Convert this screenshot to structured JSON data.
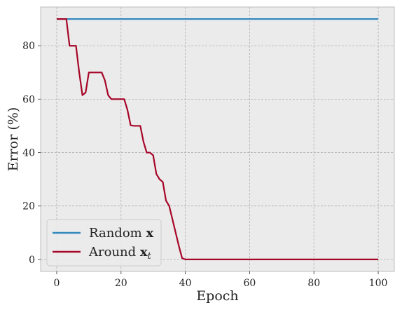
{
  "chart_data": {
    "type": "line",
    "xlabel": "Epoch",
    "ylabel": "Error (%)",
    "xlim": [
      -5,
      105
    ],
    "ylim": [
      -4.5,
      94.5
    ],
    "xticks": [
      "0",
      "20",
      "40",
      "60",
      "80",
      "100"
    ],
    "yticks": [
      "0",
      "20",
      "40",
      "60",
      "80"
    ],
    "grid": true,
    "legend_position": "lower-left",
    "background_color": "#ebebeb",
    "grid_color": "#b0b0b0",
    "series": [
      {
        "name": "Random x",
        "legend_base": "Random ",
        "legend_symbol": "x",
        "legend_subscript": "",
        "color": "#348abd",
        "x": [
          0,
          100
        ],
        "y": [
          90,
          90
        ]
      },
      {
        "name": "Around x_t",
        "legend_base": "Around ",
        "legend_symbol": "x",
        "legend_subscript": "t",
        "color": "#a60628",
        "x": [
          0,
          1,
          2,
          3,
          4,
          5,
          6,
          7,
          8,
          9,
          10,
          11,
          12,
          13,
          14,
          15,
          16,
          17,
          18,
          19,
          20,
          21,
          22,
          23,
          24,
          25,
          26,
          27,
          28,
          29,
          30,
          31,
          32,
          33,
          34,
          35,
          36,
          37,
          38,
          39,
          40,
          100
        ],
        "y": [
          90,
          90,
          90,
          90,
          80,
          80,
          80,
          70,
          61.5,
          62.5,
          70,
          70,
          70,
          70,
          70,
          67,
          61.5,
          60,
          60,
          60,
          60,
          60,
          56,
          50.2,
          50,
          50,
          50,
          44,
          40,
          40,
          39,
          32,
          30,
          29,
          22,
          20,
          15,
          10,
          5,
          0.5,
          0,
          0
        ]
      }
    ]
  }
}
